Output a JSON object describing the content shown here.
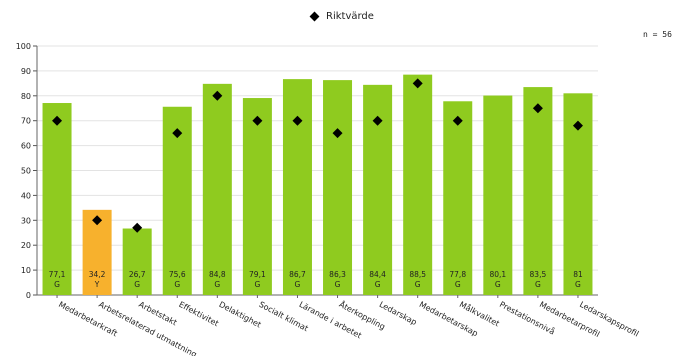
{
  "legend": {
    "marker_label": "Riktvärde"
  },
  "sample_size_label": "n = 56",
  "chart_data": {
    "type": "bar",
    "ylim": [
      0,
      100
    ],
    "yticks": [
      0,
      10,
      20,
      30,
      40,
      50,
      60,
      70,
      80,
      90,
      100
    ],
    "grid": true,
    "legend_position": "top-center",
    "categories": [
      "Medarbetarkraft",
      "Arbetsrelaterad utmattning",
      "Arbetstakt",
      "Effektivitet",
      "Delaktighet",
      "Socialt klimat",
      "Lärande i arbetet",
      "Återkoppling",
      "Ledarskap",
      "Medarbetarskap",
      "Målkvalitet",
      "Prestationsnivå",
      "Medarbetarprofil",
      "Ledarskapsprofil"
    ],
    "series": [
      {
        "values": [
          77.1,
          34.2,
          26.7,
          75.6,
          84.8,
          79.1,
          86.7,
          86.3,
          84.4,
          88.5,
          77.8,
          80.1,
          83.5,
          81
        ],
        "value_labels": [
          "77,1",
          "34,2",
          "26,7",
          "75,6",
          "84,8",
          "79,1",
          "86,7",
          "86,3",
          "84,4",
          "88,5",
          "77,8",
          "80,1",
          "83,5",
          "81"
        ],
        "grades": [
          "G",
          "Y",
          "G",
          "G",
          "G",
          "G",
          "G",
          "G",
          "G",
          "G",
          "G",
          "G",
          "G",
          "G"
        ]
      },
      {
        "name": "Riktvärde",
        "type": "scatter",
        "values": [
          70,
          30,
          27,
          65,
          80,
          70,
          70,
          65,
          70,
          85,
          70,
          null,
          75,
          68
        ]
      }
    ],
    "colors": {
      "G": "#8fcb1f",
      "Y": "#f7b12d",
      "marker": "#000000"
    }
  }
}
